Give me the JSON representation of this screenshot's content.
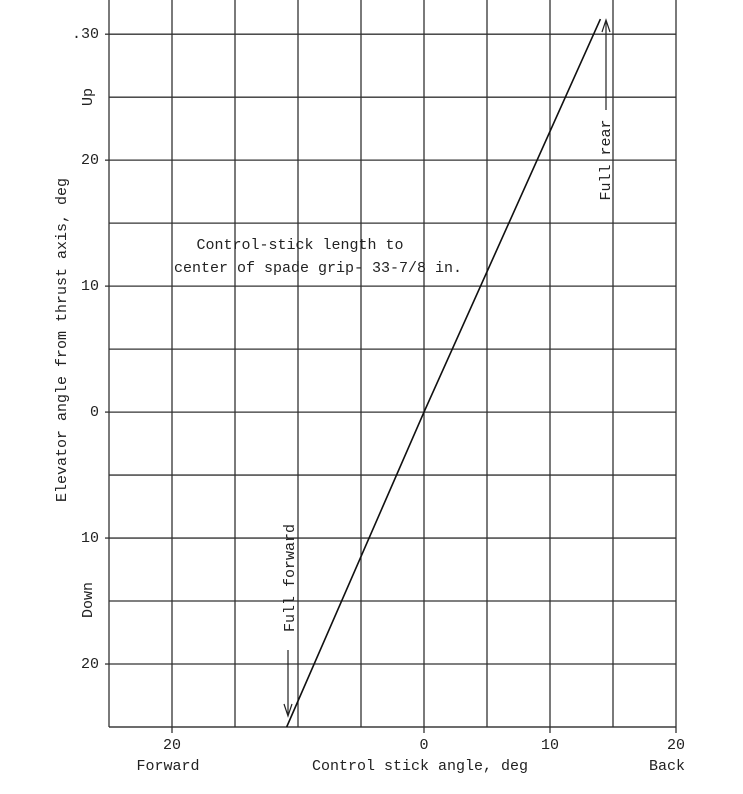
{
  "chart_data": {
    "type": "line",
    "x_label": "Control stick angle, deg",
    "y_label": "Elevator angle from thrust axis, deg",
    "x_side_labels": [
      "Forward",
      "Back"
    ],
    "y_side_labels": [
      "Up",
      "Down"
    ],
    "annotations": [
      "Control-stick length to",
      "center of spade grip- 33-7/8 in.",
      "Full rear",
      "Full forward"
    ],
    "x": [
      -10.9,
      0,
      14
    ],
    "series": [
      {
        "color": "#111111",
        "values": [
          -25,
          0,
          31.2
        ]
      }
    ],
    "xlim": [
      -25,
      20
    ],
    "ylim": [
      -25,
      32
    ],
    "xticks": [
      {
        "value": -20,
        "label": "20"
      },
      0,
      10,
      {
        "value": 20,
        "label": "20"
      }
    ],
    "yticks": [
      {
        "value": -20,
        "label": "20"
      },
      {
        "value": -10,
        "label": "10"
      },
      0,
      10,
      20,
      {
        "value": 30,
        "label": ".30"
      }
    ],
    "grid": true,
    "grid_interval": 5
  }
}
